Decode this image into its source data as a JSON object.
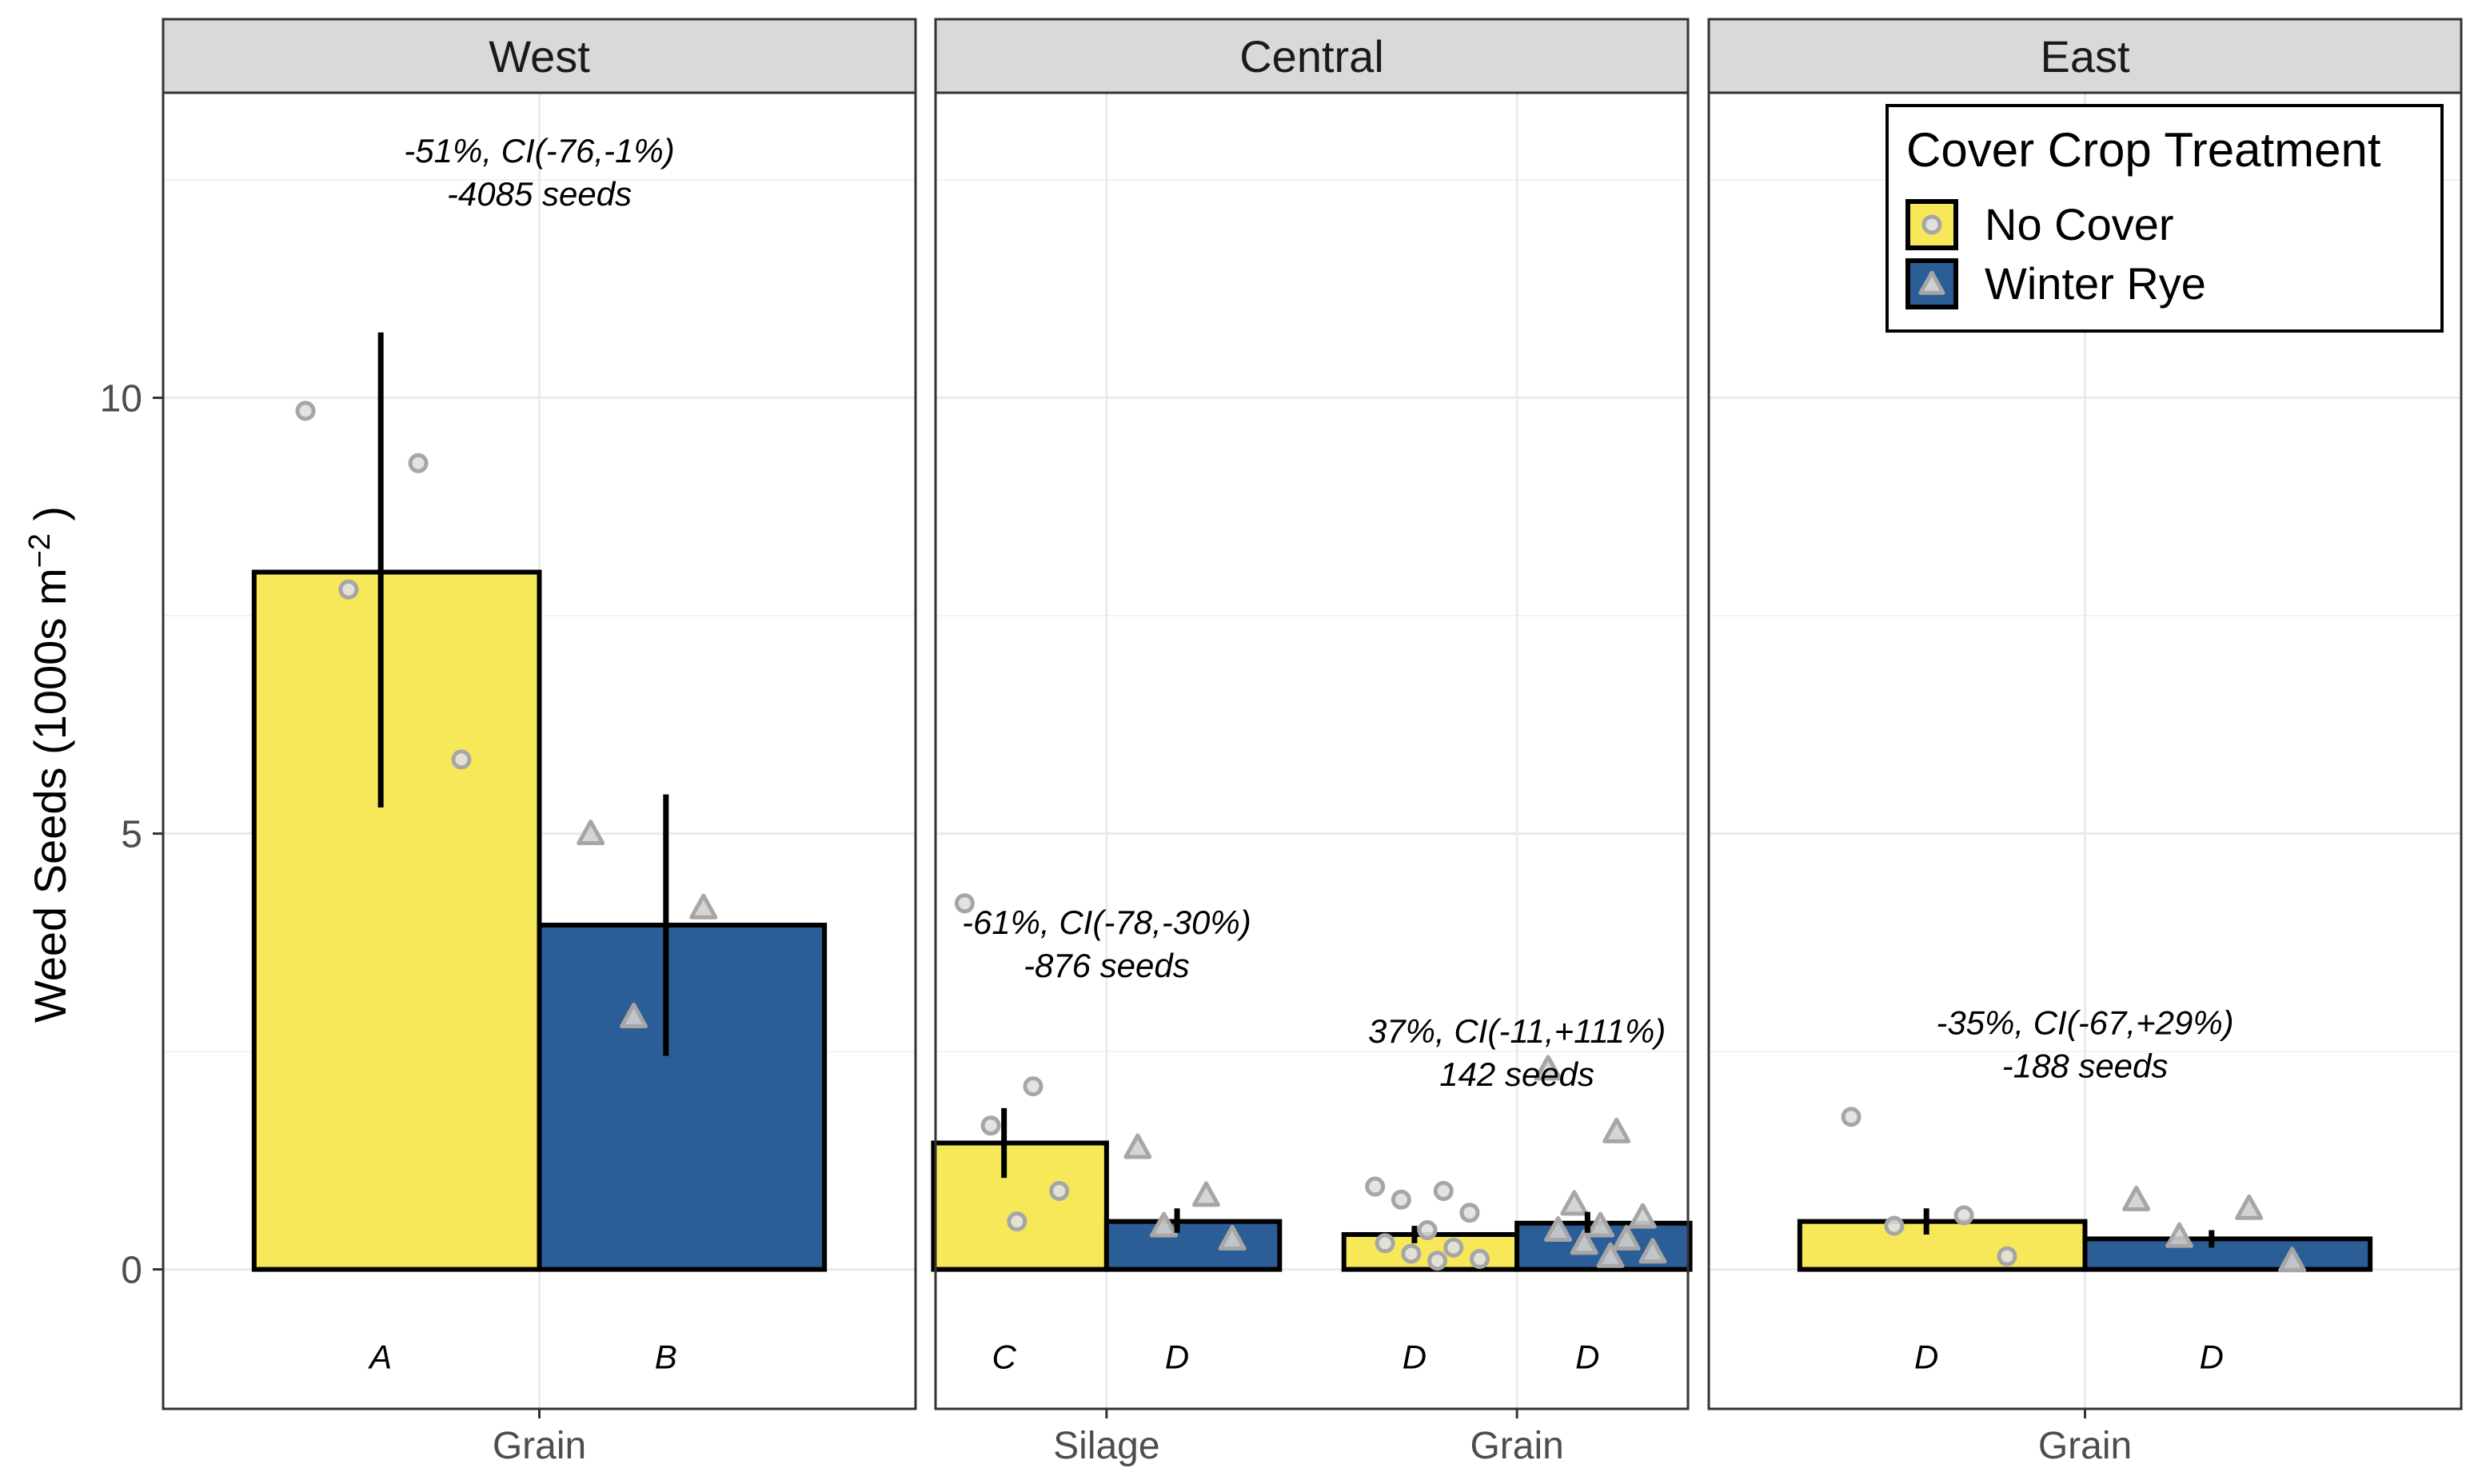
{
  "chart_data": {
    "type": "bar",
    "ylabel": "Weed Seeds (1000s m",
    "ylabel_sup": "−2",
    "ylabel_end": " )",
    "ylim": [
      -1.6,
      13.5
    ],
    "yticks": [
      0,
      5,
      10
    ],
    "ytick_labels": [
      "0",
      "5",
      "10"
    ],
    "legend": {
      "title": "Cover Crop Treatment",
      "position": "top-right",
      "entries": [
        {
          "key": "no_cover",
          "label": "No Cover",
          "fill": "#F7E859",
          "marker": "circle"
        },
        {
          "key": "winter_rye",
          "label": "Winter Rye",
          "fill": "#2B5E96",
          "marker": "triangle"
        }
      ]
    },
    "panels": [
      {
        "name": "West",
        "categories": [
          "Grain"
        ],
        "groups": [
          {
            "category": "Grain",
            "annotation": [
              "-51%, CI(-76,-1%)",
              "-4085 seeds"
            ],
            "bars": [
              {
                "treatment": "no_cover",
                "value": 8.0,
                "ci": [
                  5.3,
                  10.75
                ],
                "letter": "A",
                "points": [
                  9.85,
                  9.25,
                  7.8,
                  5.85
                ]
              },
              {
                "treatment": "winter_rye",
                "value": 3.95,
                "ci": [
                  2.45,
                  5.45
                ],
                "letter": "B",
                "points": [
                  5.0,
                  4.15,
                  2.9
                ]
              }
            ]
          }
        ]
      },
      {
        "name": "Central",
        "categories": [
          "Silage",
          "Grain"
        ],
        "groups": [
          {
            "category": "Silage",
            "annotation": [
              "-61%, CI(-78,-30%)",
              "-876 seeds"
            ],
            "bars": [
              {
                "treatment": "no_cover",
                "value": 1.45,
                "ci": [
                  1.05,
                  1.85
                ],
                "letter": "C",
                "points": [
                  4.2,
                  2.1,
                  1.65,
                  0.9,
                  0.55
                ]
              },
              {
                "treatment": "winter_rye",
                "value": 0.55,
                "ci": [
                  0.42,
                  0.7
                ],
                "letter": "D",
                "points": [
                  1.4,
                  0.85,
                  0.5,
                  0.35
                ]
              }
            ]
          },
          {
            "category": "Grain",
            "annotation": [
              "37%, CI(-11,+111%)",
              "142 seeds"
            ],
            "bars": [
              {
                "treatment": "no_cover",
                "value": 0.4,
                "ci": [
                  0.3,
                  0.5
                ],
                "letter": "D",
                "points": [
                  0.95,
                  0.9,
                  0.8,
                  0.65,
                  0.45,
                  0.3,
                  0.25,
                  0.18,
                  0.12,
                  0.1
                ]
              },
              {
                "treatment": "winter_rye",
                "value": 0.53,
                "ci": [
                  0.42,
                  0.66
                ],
                "letter": "D",
                "points": [
                  2.3,
                  1.58,
                  0.75,
                  0.6,
                  0.5,
                  0.45,
                  0.35,
                  0.3,
                  0.2,
                  0.15
                ]
              }
            ]
          }
        ]
      },
      {
        "name": "East",
        "categories": [
          "Grain"
        ],
        "groups": [
          {
            "category": "Grain",
            "annotation": [
              "-35%, CI(-67,+29%)",
              "-188 seeds"
            ],
            "bars": [
              {
                "treatment": "no_cover",
                "value": 0.55,
                "ci": [
                  0.4,
                  0.7
                ],
                "letter": "D",
                "points": [
                  1.75,
                  0.62,
                  0.5,
                  0.15
                ]
              },
              {
                "treatment": "winter_rye",
                "value": 0.35,
                "ci": [
                  0.25,
                  0.45
                ],
                "letter": "D",
                "points": [
                  0.8,
                  0.7,
                  0.38,
                  0.1
                ]
              }
            ]
          }
        ]
      }
    ]
  }
}
